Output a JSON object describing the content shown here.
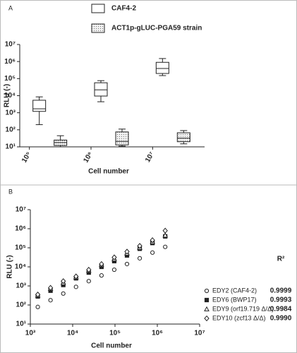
{
  "chart_data": [
    {
      "type": "box",
      "panel_label": "A",
      "y_label": "RLU (-)",
      "x_label": "Cell number",
      "categories": [
        "10⁵",
        "10⁶",
        "10⁷"
      ],
      "log_y": true,
      "ylim": [
        10,
        10000000
      ],
      "yticks": [
        {
          "value": 10,
          "label": "10¹"
        },
        {
          "value": 100,
          "label": "10²"
        },
        {
          "value": 1000,
          "label": "10³"
        },
        {
          "value": 10000,
          "label": "10⁴"
        },
        {
          "value": 100000,
          "label": "10⁵"
        },
        {
          "value": 1000000,
          "label": "10⁶"
        },
        {
          "value": 10000000,
          "label": "10⁷"
        }
      ],
      "series": [
        {
          "name": "CAF4-2",
          "color": "#ffffff",
          "pattern": "none",
          "values": [
            {
              "whislo": 200,
              "q1": 1200,
              "med": 1700,
              "q3": 5400,
              "whishi": 8500
            },
            {
              "whislo": 4400,
              "q1": 9500,
              "med": 22000,
              "q3": 57000,
              "whishi": 76000
            },
            {
              "whislo": 150000,
              "q1": 200000,
              "med": 390000,
              "q3": 900000,
              "whishi": 1500000
            }
          ]
        },
        {
          "name": "ACT1p-gLUC-PGA59 strain",
          "color": "#e6e6e6",
          "pattern": "dots",
          "values": [
            {
              "whislo": 10,
              "q1": 12,
              "med": 18,
              "q3": 25,
              "whishi": 45
            },
            {
              "whislo": 11,
              "q1": 13,
              "med": 21,
              "q3": 75,
              "whishi": 110
            },
            {
              "whislo": 15,
              "q1": 20,
              "med": 32,
              "q3": 67,
              "whishi": 90
            }
          ]
        }
      ]
    },
    {
      "type": "scatter",
      "panel_label": "B",
      "y_label": "RLU (-)",
      "x_label": "Cell number",
      "log_x": true,
      "log_y": true,
      "r2_header": "R²",
      "xlim": [
        1000,
        10000000
      ],
      "ylim": [
        10,
        10000000
      ],
      "xticks": [
        {
          "value": 1000,
          "label": "10³"
        },
        {
          "value": 10000,
          "label": "10⁴"
        },
        {
          "value": 100000,
          "label": "10⁵"
        },
        {
          "value": 1000000,
          "label": "10⁶"
        },
        {
          "value": 10000000,
          "label": "10⁷"
        }
      ],
      "yticks": [
        {
          "value": 10,
          "label": "10¹"
        },
        {
          "value": 100,
          "label": "10²"
        },
        {
          "value": 1000,
          "label": "10³"
        },
        {
          "value": 10000,
          "label": "10⁴"
        },
        {
          "value": 100000,
          "label": "10⁵"
        },
        {
          "value": 1000000,
          "label": "10⁶"
        },
        {
          "value": 10000000,
          "label": "10⁷"
        }
      ],
      "x": [
        1500,
        3000,
        6000,
        12000,
        24000,
        48000,
        96000,
        192000,
        384000,
        768000,
        1536000
      ],
      "series": [
        {
          "name": "EDY2 (CAF4-2)",
          "r2": "0.9999",
          "color": "#222222",
          "marker": "circle",
          "filled": false,
          "values": [
            79,
            178,
            398,
            891,
            1780,
            3550,
            7080,
            14100,
            28200,
            56200,
            112000
          ]
        },
        {
          "name": "EDY6 (BWP17)",
          "r2": "0.9993",
          "color": "#222222",
          "marker": "square",
          "filled": true,
          "values": [
            282,
            562,
            1120,
            2510,
            5010,
            10000,
            20000,
            39800,
            89100,
            178000,
            398000
          ]
        },
        {
          "name": "EDY9 (orf19.719 Δ/Δ)",
          "r2": "0.9984",
          "color": "#222222",
          "marker": "triangle",
          "filled": false,
          "values": [
            316,
            708,
            1410,
            2820,
            6310,
            12600,
            25100,
            50100,
            100000,
            200000,
            447000
          ]
        },
        {
          "name": "EDY10 (zcf13 Δ/Δ)",
          "r2": "0.9990",
          "color": "#222222",
          "marker": "diamond",
          "filled": false,
          "values": [
            355,
            794,
            1780,
            3160,
            7080,
            14100,
            31600,
            63100,
            126000,
            251000,
            794000
          ]
        }
      ]
    }
  ]
}
